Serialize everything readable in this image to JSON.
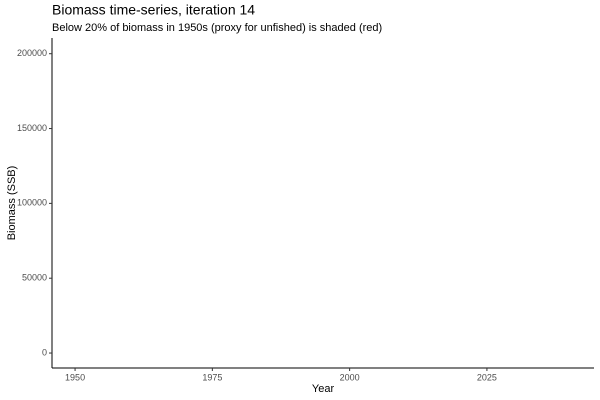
{
  "chart_data": {
    "type": "line",
    "title": "Biomass time-series, iteration 14",
    "subtitle": "Below 20% of biomass in 1950s (proxy for unfished) is shaded (red)",
    "x_label": "Year",
    "y_label": "Biomass (SSB)",
    "xlim": [
      1945.8,
      2044.5
    ],
    "xticks": [
      1950,
      1975,
      2000,
      2025
    ],
    "ylim": [
      -10000,
      210500
    ],
    "yticks": [
      0,
      50000,
      100000,
      150000,
      200000
    ],
    "series": []
  }
}
